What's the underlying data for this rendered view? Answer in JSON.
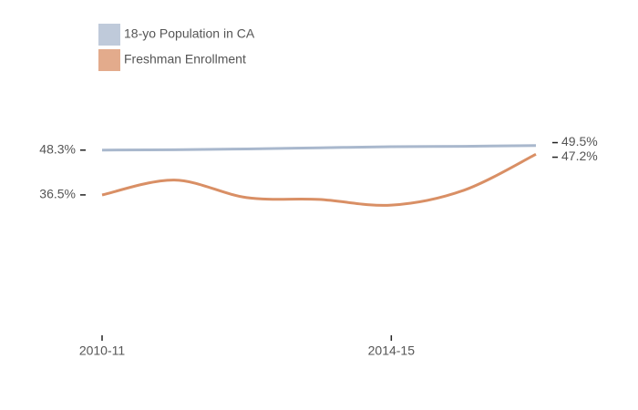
{
  "chart_data": {
    "type": "line",
    "categories": [
      "2010-11",
      null,
      null,
      null,
      "2014-15",
      null,
      null
    ],
    "series": [
      {
        "name": "18-yo Population in CA",
        "color": "#a9b8cd",
        "values": [
          48.3,
          48.4,
          48.6,
          48.9,
          49.2,
          49.3,
          49.5
        ],
        "value_labels": [
          "48.3%",
          null,
          null,
          null,
          null,
          null,
          "49.5%"
        ]
      },
      {
        "name": "Freshman Enrollment",
        "color": "#d98f65",
        "values": [
          36.5,
          40.4,
          35.8,
          35.3,
          33.8,
          37.7,
          47.2
        ],
        "value_labels": [
          "36.5%",
          null,
          null,
          null,
          null,
          null,
          "47.2%"
        ]
      }
    ],
    "ylim": [
      0,
      60
    ]
  }
}
